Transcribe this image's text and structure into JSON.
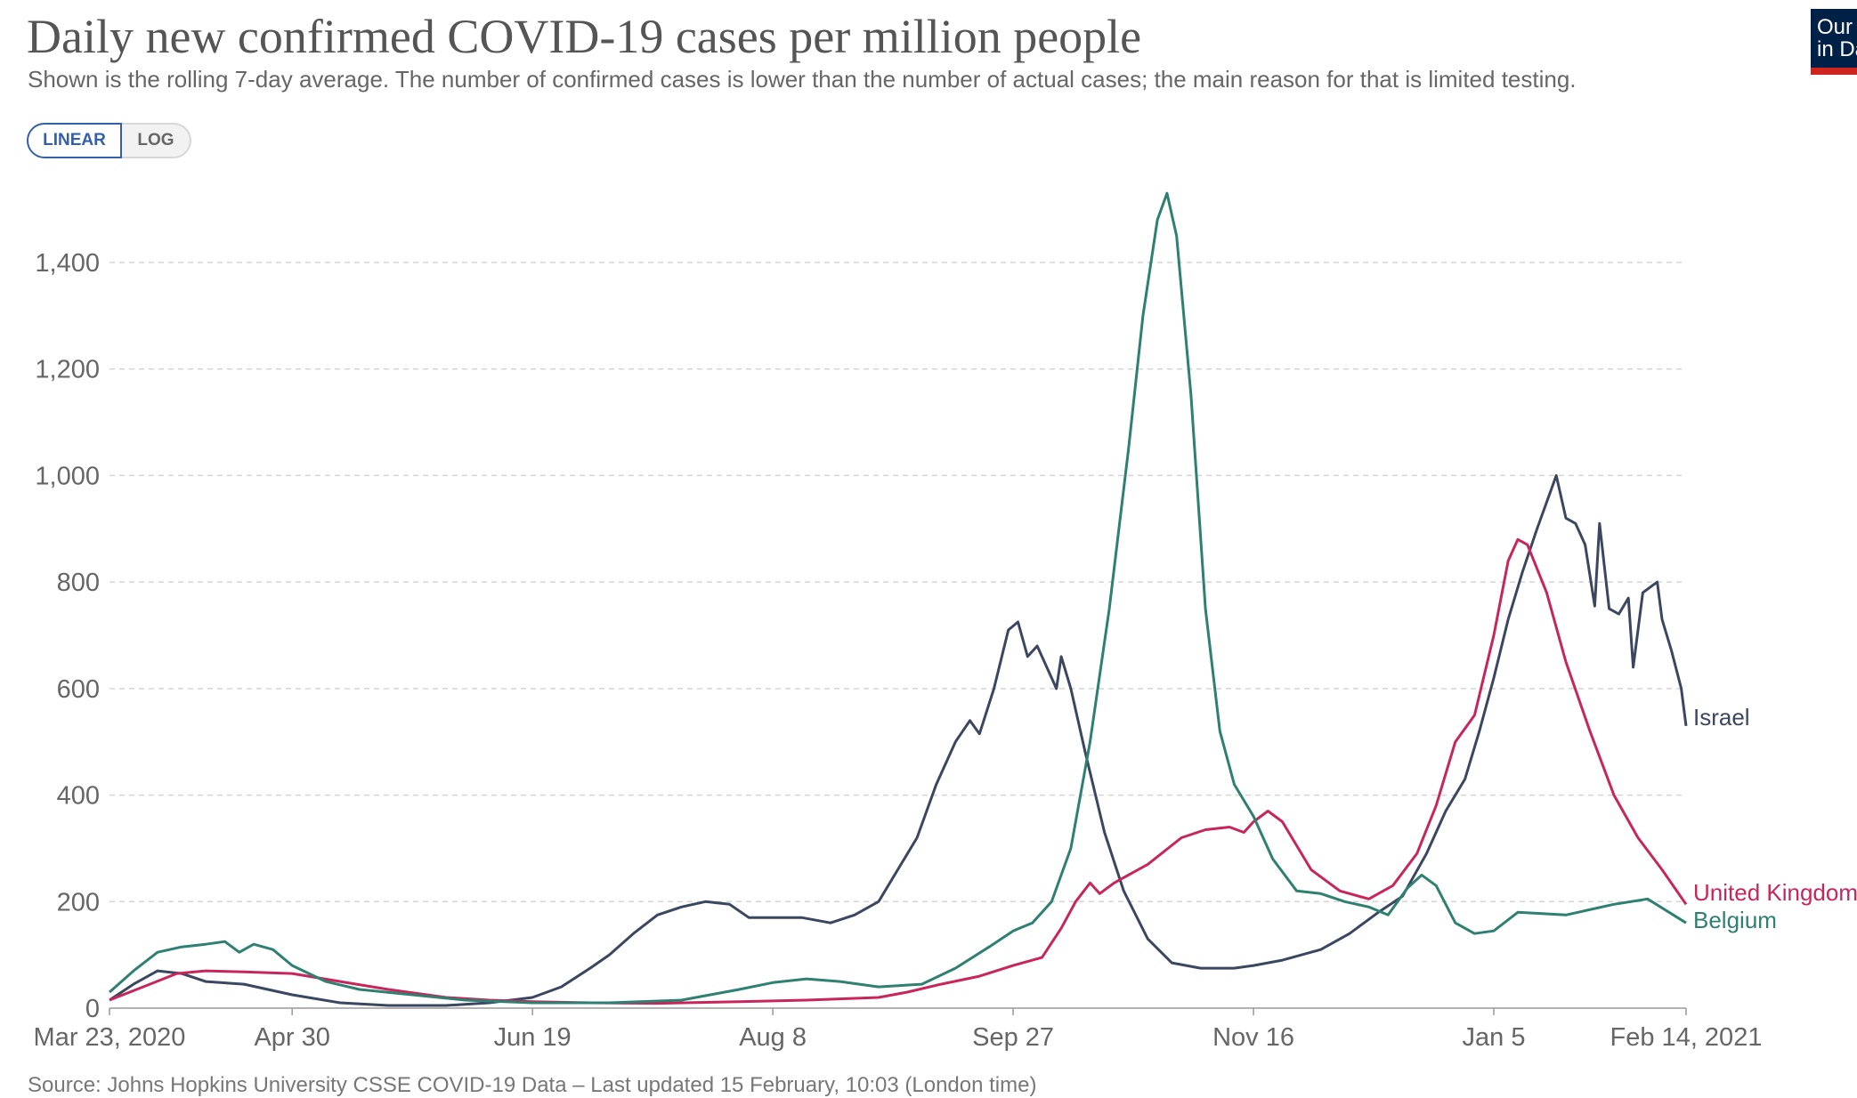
{
  "header": {
    "title": "Daily new confirmed COVID-19 cases per million people",
    "subtitle": "Shown is the rolling 7-day average. The number of confirmed cases is lower than the number of actual cases; the main reason for that is limited testing.",
    "logo_text": "Our World\nin Data"
  },
  "controls": {
    "linear_label": "LINEAR",
    "log_label": "LOG",
    "selected": "LINEAR"
  },
  "footer": {
    "source": "Source: Johns Hopkins University CSSE COVID-19 Data – Last updated 15 February, 10:03 (London time)"
  },
  "colors": {
    "israel": "#3b4660",
    "uk": "#c8265b",
    "belgium": "#2e8071",
    "grid": "#d5d5d5",
    "logo_bg": "#002147",
    "logo_bar": "#ce261e",
    "toggle_active": "#3360a9"
  },
  "chart_data": {
    "type": "line",
    "title": "Daily new confirmed COVID-19 cases per million people",
    "subtitle": "Shown is the rolling 7-day average. The number of confirmed cases is lower than the number of actual cases; the main reason for that is limited testing.",
    "x_range": [
      "2020-03-23",
      "2021-02-14"
    ],
    "x_ticks": [
      {
        "date": "2020-03-23",
        "label": "Mar 23, 2020"
      },
      {
        "date": "2020-04-30",
        "label": "Apr 30"
      },
      {
        "date": "2020-06-19",
        "label": "Jun 19"
      },
      {
        "date": "2020-08-08",
        "label": "Aug 8"
      },
      {
        "date": "2020-09-27",
        "label": "Sep 27"
      },
      {
        "date": "2020-11-16",
        "label": "Nov 16"
      },
      {
        "date": "2021-01-05",
        "label": "Jan 5"
      },
      {
        "date": "2021-02-14",
        "label": "Feb 14, 2021"
      }
    ],
    "y_ticks": [
      {
        "value": 0,
        "label": "0"
      },
      {
        "value": 200,
        "label": "200"
      },
      {
        "value": 400,
        "label": "400"
      },
      {
        "value": 600,
        "label": "600"
      },
      {
        "value": 800,
        "label": "800"
      },
      {
        "value": 1000,
        "label": "1,000"
      },
      {
        "value": 1200,
        "label": "1,200"
      },
      {
        "value": 1400,
        "label": "1,400"
      }
    ],
    "ylim": [
      0,
      1400
    ],
    "grid": "horizontal dashed",
    "legend": "line-end labels (right)",
    "series": [
      {
        "name": "Israel",
        "color": "#3b4660",
        "points": [
          [
            "2020-03-23",
            15
          ],
          [
            "2020-03-28",
            45
          ],
          [
            "2020-04-02",
            70
          ],
          [
            "2020-04-07",
            65
          ],
          [
            "2020-04-12",
            50
          ],
          [
            "2020-04-20",
            45
          ],
          [
            "2020-04-30",
            25
          ],
          [
            "2020-05-10",
            10
          ],
          [
            "2020-05-20",
            5
          ],
          [
            "2020-06-01",
            5
          ],
          [
            "2020-06-10",
            10
          ],
          [
            "2020-06-19",
            20
          ],
          [
            "2020-06-25",
            40
          ],
          [
            "2020-07-01",
            75
          ],
          [
            "2020-07-05",
            100
          ],
          [
            "2020-07-10",
            140
          ],
          [
            "2020-07-15",
            175
          ],
          [
            "2020-07-20",
            190
          ],
          [
            "2020-07-25",
            200
          ],
          [
            "2020-07-30",
            195
          ],
          [
            "2020-08-03",
            170
          ],
          [
            "2020-08-08",
            170
          ],
          [
            "2020-08-14",
            170
          ],
          [
            "2020-08-20",
            160
          ],
          [
            "2020-08-25",
            175
          ],
          [
            "2020-08-30",
            200
          ],
          [
            "2020-09-03",
            260
          ],
          [
            "2020-09-07",
            320
          ],
          [
            "2020-09-11",
            420
          ],
          [
            "2020-09-15",
            500
          ],
          [
            "2020-09-18",
            540
          ],
          [
            "2020-09-20",
            515
          ],
          [
            "2020-09-23",
            600
          ],
          [
            "2020-09-26",
            710
          ],
          [
            "2020-09-28",
            725
          ],
          [
            "2020-09-30",
            660
          ],
          [
            "2020-10-02",
            680
          ],
          [
            "2020-10-04",
            640
          ],
          [
            "2020-10-06",
            600
          ],
          [
            "2020-10-07",
            660
          ],
          [
            "2020-10-09",
            600
          ],
          [
            "2020-10-12",
            480
          ],
          [
            "2020-10-16",
            330
          ],
          [
            "2020-10-20",
            220
          ],
          [
            "2020-10-25",
            130
          ],
          [
            "2020-10-30",
            85
          ],
          [
            "2020-11-05",
            75
          ],
          [
            "2020-11-12",
            75
          ],
          [
            "2020-11-16",
            80
          ],
          [
            "2020-11-22",
            90
          ],
          [
            "2020-11-30",
            110
          ],
          [
            "2020-12-06",
            140
          ],
          [
            "2020-12-12",
            180
          ],
          [
            "2020-12-17",
            210
          ],
          [
            "2020-12-22",
            290
          ],
          [
            "2020-12-26",
            370
          ],
          [
            "2020-12-30",
            430
          ],
          [
            "2021-01-02",
            520
          ],
          [
            "2021-01-05",
            620
          ],
          [
            "2021-01-08",
            730
          ],
          [
            "2021-01-11",
            820
          ],
          [
            "2021-01-14",
            900
          ],
          [
            "2021-01-16",
            950
          ],
          [
            "2021-01-18",
            1000
          ],
          [
            "2021-01-20",
            920
          ],
          [
            "2021-01-22",
            910
          ],
          [
            "2021-01-24",
            870
          ],
          [
            "2021-01-26",
            755
          ],
          [
            "2021-01-27",
            910
          ],
          [
            "2021-01-29",
            750
          ],
          [
            "2021-01-31",
            740
          ],
          [
            "2021-02-02",
            770
          ],
          [
            "2021-02-03",
            640
          ],
          [
            "2021-02-05",
            780
          ],
          [
            "2021-02-08",
            800
          ],
          [
            "2021-02-09",
            730
          ],
          [
            "2021-02-11",
            670
          ],
          [
            "2021-02-13",
            600
          ],
          [
            "2021-02-14",
            530
          ]
        ]
      },
      {
        "name": "United Kingdom",
        "color": "#c8265b",
        "points": [
          [
            "2020-03-23",
            15
          ],
          [
            "2020-03-30",
            40
          ],
          [
            "2020-04-06",
            65
          ],
          [
            "2020-04-12",
            70
          ],
          [
            "2020-04-20",
            68
          ],
          [
            "2020-04-30",
            65
          ],
          [
            "2020-05-10",
            50
          ],
          [
            "2020-05-20",
            35
          ],
          [
            "2020-06-01",
            20
          ],
          [
            "2020-06-10",
            15
          ],
          [
            "2020-06-19",
            12
          ],
          [
            "2020-07-01",
            10
          ],
          [
            "2020-07-15",
            9
          ],
          [
            "2020-08-01",
            12
          ],
          [
            "2020-08-15",
            15
          ],
          [
            "2020-08-30",
            20
          ],
          [
            "2020-09-05",
            30
          ],
          [
            "2020-09-12",
            45
          ],
          [
            "2020-09-20",
            60
          ],
          [
            "2020-09-27",
            80
          ],
          [
            "2020-10-03",
            95
          ],
          [
            "2020-10-07",
            150
          ],
          [
            "2020-10-10",
            200
          ],
          [
            "2020-10-13",
            235
          ],
          [
            "2020-10-15",
            215
          ],
          [
            "2020-10-18",
            235
          ],
          [
            "2020-10-25",
            270
          ],
          [
            "2020-11-01",
            320
          ],
          [
            "2020-11-06",
            335
          ],
          [
            "2020-11-11",
            340
          ],
          [
            "2020-11-14",
            330
          ],
          [
            "2020-11-16",
            350
          ],
          [
            "2020-11-19",
            370
          ],
          [
            "2020-11-22",
            350
          ],
          [
            "2020-11-28",
            260
          ],
          [
            "2020-12-04",
            220
          ],
          [
            "2020-12-10",
            205
          ],
          [
            "2020-12-15",
            230
          ],
          [
            "2020-12-20",
            290
          ],
          [
            "2020-12-24",
            380
          ],
          [
            "2020-12-28",
            500
          ],
          [
            "2021-01-01",
            550
          ],
          [
            "2021-01-05",
            700
          ],
          [
            "2021-01-08",
            840
          ],
          [
            "2021-01-10",
            880
          ],
          [
            "2021-01-12",
            870
          ],
          [
            "2021-01-16",
            780
          ],
          [
            "2021-01-20",
            650
          ],
          [
            "2021-01-25",
            520
          ],
          [
            "2021-01-30",
            400
          ],
          [
            "2021-02-04",
            320
          ],
          [
            "2021-02-09",
            260
          ],
          [
            "2021-02-14",
            195
          ]
        ]
      },
      {
        "name": "Belgium",
        "color": "#2e8071",
        "points": [
          [
            "2020-03-23",
            30
          ],
          [
            "2020-03-28",
            70
          ],
          [
            "2020-04-02",
            105
          ],
          [
            "2020-04-07",
            115
          ],
          [
            "2020-04-12",
            120
          ],
          [
            "2020-04-16",
            125
          ],
          [
            "2020-04-19",
            105
          ],
          [
            "2020-04-22",
            120
          ],
          [
            "2020-04-26",
            110
          ],
          [
            "2020-04-30",
            80
          ],
          [
            "2020-05-07",
            50
          ],
          [
            "2020-05-14",
            35
          ],
          [
            "2020-05-25",
            25
          ],
          [
            "2020-06-05",
            15
          ],
          [
            "2020-06-19",
            10
          ],
          [
            "2020-07-05",
            10
          ],
          [
            "2020-07-20",
            15
          ],
          [
            "2020-08-01",
            35
          ],
          [
            "2020-08-08",
            48
          ],
          [
            "2020-08-15",
            55
          ],
          [
            "2020-08-22",
            50
          ],
          [
            "2020-08-30",
            40
          ],
          [
            "2020-09-08",
            45
          ],
          [
            "2020-09-15",
            75
          ],
          [
            "2020-09-22",
            115
          ],
          [
            "2020-09-27",
            145
          ],
          [
            "2020-10-01",
            160
          ],
          [
            "2020-10-05",
            200
          ],
          [
            "2020-10-09",
            300
          ],
          [
            "2020-10-13",
            500
          ],
          [
            "2020-10-17",
            750
          ],
          [
            "2020-10-21",
            1050
          ],
          [
            "2020-10-24",
            1300
          ],
          [
            "2020-10-27",
            1480
          ],
          [
            "2020-10-29",
            1530
          ],
          [
            "2020-10-31",
            1450
          ],
          [
            "2020-11-03",
            1150
          ],
          [
            "2020-11-06",
            750
          ],
          [
            "2020-11-09",
            520
          ],
          [
            "2020-11-12",
            420
          ],
          [
            "2020-11-16",
            360
          ],
          [
            "2020-11-20",
            280
          ],
          [
            "2020-11-25",
            220
          ],
          [
            "2020-11-30",
            215
          ],
          [
            "2020-12-05",
            200
          ],
          [
            "2020-12-10",
            190
          ],
          [
            "2020-12-14",
            175
          ],
          [
            "2020-12-18",
            225
          ],
          [
            "2020-12-21",
            250
          ],
          [
            "2020-12-24",
            230
          ],
          [
            "2020-12-28",
            160
          ],
          [
            "2021-01-01",
            140
          ],
          [
            "2021-01-05",
            145
          ],
          [
            "2021-01-10",
            180
          ],
          [
            "2021-01-20",
            175
          ],
          [
            "2021-01-30",
            195
          ],
          [
            "2021-02-06",
            205
          ],
          [
            "2021-02-14",
            160
          ]
        ]
      }
    ]
  }
}
